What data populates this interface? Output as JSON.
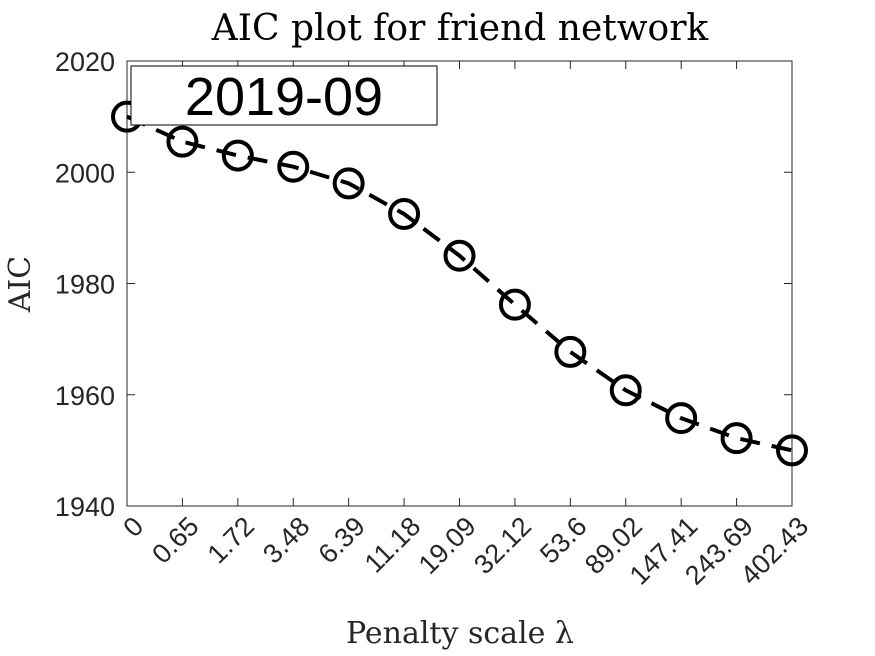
{
  "chart_data": {
    "type": "line",
    "title": "AIC plot for friend network",
    "xlabel": "Penalty scale λ",
    "ylabel": "AIC",
    "categories": [
      "0",
      "0.65",
      "1.72",
      "3.48",
      "6.39",
      "11.18",
      "19.09",
      "32.12",
      "53.6",
      "89.02",
      "147.41",
      "243.69",
      "402.43"
    ],
    "series": [
      {
        "values": [
          2010,
          2005.5,
          2003,
          2001,
          1998,
          1992.5,
          1985,
          1976.2,
          1967.7,
          1960.8,
          1955.8,
          1952.2,
          1950
        ]
      }
    ],
    "ylim": [
      1940,
      2020
    ],
    "yticks": [
      1940,
      1960,
      1980,
      2000,
      2020
    ],
    "marker": "open-circle",
    "line_style": "dashed",
    "line_color": "#000000",
    "grid": false,
    "annotation": "2019-09"
  }
}
